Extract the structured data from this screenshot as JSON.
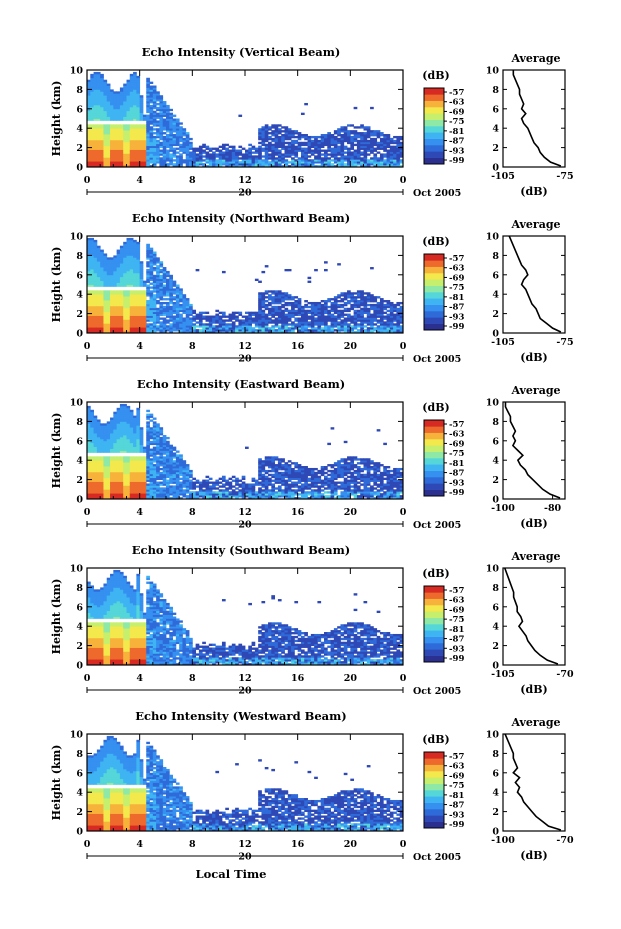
{
  "figure": {
    "bottom_xlabel": "Local Time",
    "colorbar_label": "(dB)",
    "colorbar_ticks": [
      "-57",
      "-63",
      "-69",
      "-75",
      "-81",
      "-87",
      "-93",
      "-99"
    ],
    "colormap": [
      "#2b2f8f",
      "#2e48b5",
      "#2f6ad9",
      "#3590f0",
      "#3fb4f2",
      "#55d6d8",
      "#8ee8a6",
      "#c6ef6e",
      "#f3e84c",
      "#f7b23b",
      "#ee6a2c",
      "#d62a23"
    ],
    "axis_ylabel": "Height (km)",
    "x_ticks": [
      "0",
      "4",
      "8",
      "12",
      "16",
      "20",
      "0"
    ],
    "date_day": "20",
    "date_label": "Oct 2005",
    "avg_title": "Average",
    "avg_xlabel": "(dB)",
    "avg_y_ticks": [
      "10",
      "8",
      "6",
      "4",
      "2",
      "0"
    ]
  },
  "chart_data": [
    {
      "type": "heatmap",
      "title": "Echo Intensity (Vertical Beam)",
      "ylabel": "Height (km)",
      "xlim": [
        0,
        24
      ],
      "ylim": [
        0,
        10
      ],
      "color_range": [
        -99,
        -57
      ],
      "profile": {
        "title": "Average",
        "xlabel": "(dB)",
        "x_ticks": [
          "-105",
          "-75"
        ],
        "xlim": [
          -105,
          -75
        ],
        "points": [
          [
            -100,
            10
          ],
          [
            -100,
            9.5
          ],
          [
            -99,
            9
          ],
          [
            -98,
            8.5
          ],
          [
            -97,
            8
          ],
          [
            -97,
            7.5
          ],
          [
            -96,
            7
          ],
          [
            -95,
            6.5
          ],
          [
            -96,
            6
          ],
          [
            -94,
            5.5
          ],
          [
            -96,
            5
          ],
          [
            -95,
            4.5
          ],
          [
            -93,
            4
          ],
          [
            -92,
            3.5
          ],
          [
            -91,
            3
          ],
          [
            -90,
            2.5
          ],
          [
            -88,
            2
          ],
          [
            -87,
            1.5
          ],
          [
            -85,
            1
          ],
          [
            -82,
            0.5
          ],
          [
            -77,
            0.1
          ]
        ]
      }
    },
    {
      "type": "heatmap",
      "title": "Echo Intensity (Northward Beam)",
      "ylabel": "Height (km)",
      "xlim": [
        0,
        24
      ],
      "ylim": [
        0,
        10
      ],
      "color_range": [
        -99,
        -57
      ],
      "profile": {
        "title": "Average",
        "xlabel": "(dB)",
        "x_ticks": [
          "-105",
          "-75"
        ],
        "xlim": [
          -105,
          -75
        ],
        "points": [
          [
            -102,
            10
          ],
          [
            -101,
            9.5
          ],
          [
            -100,
            9
          ],
          [
            -99,
            8.5
          ],
          [
            -98,
            8
          ],
          [
            -97,
            7.5
          ],
          [
            -96,
            7
          ],
          [
            -94,
            6.5
          ],
          [
            -93,
            6
          ],
          [
            -95,
            5.5
          ],
          [
            -96,
            5
          ],
          [
            -94,
            4.5
          ],
          [
            -93,
            4
          ],
          [
            -92,
            3.5
          ],
          [
            -91,
            3
          ],
          [
            -89,
            2.5
          ],
          [
            -88,
            2
          ],
          [
            -87,
            1.5
          ],
          [
            -84,
            1
          ],
          [
            -81,
            0.5
          ],
          [
            -77,
            0.1
          ]
        ]
      }
    },
    {
      "type": "heatmap",
      "title": "Echo Intensity (Eastward Beam)",
      "ylabel": "Height (km)",
      "xlim": [
        0,
        24
      ],
      "ylim": [
        0,
        10
      ],
      "color_range": [
        -99,
        -57
      ],
      "profile": {
        "title": "Average",
        "xlabel": "(dB)",
        "x_ticks": [
          "-100",
          "-80"
        ],
        "xlim": [
          -100,
          -75
        ],
        "points": [
          [
            -99,
            10
          ],
          [
            -99,
            9.5
          ],
          [
            -98,
            9
          ],
          [
            -97,
            8.5
          ],
          [
            -97,
            8
          ],
          [
            -96,
            7.5
          ],
          [
            -95,
            7
          ],
          [
            -96,
            6.5
          ],
          [
            -95,
            6
          ],
          [
            -96,
            5.5
          ],
          [
            -94,
            5
          ],
          [
            -92,
            4.5
          ],
          [
            -94,
            4
          ],
          [
            -93,
            3.5
          ],
          [
            -91,
            3
          ],
          [
            -90,
            2.5
          ],
          [
            -88,
            2
          ],
          [
            -86,
            1.5
          ],
          [
            -84,
            1
          ],
          [
            -81,
            0.5
          ],
          [
            -77,
            0.1
          ]
        ]
      }
    },
    {
      "type": "heatmap",
      "title": "Echo Intensity (Southward Beam)",
      "ylabel": "Height (km)",
      "xlim": [
        0,
        24
      ],
      "ylim": [
        0,
        10
      ],
      "color_range": [
        -99,
        -57
      ],
      "profile": {
        "title": "Average",
        "xlabel": "(dB)",
        "x_ticks": [
          "-105",
          "-70"
        ],
        "xlim": [
          -105,
          -70
        ],
        "points": [
          [
            -104,
            10
          ],
          [
            -103,
            9.5
          ],
          [
            -102,
            9
          ],
          [
            -101,
            8.5
          ],
          [
            -100,
            8
          ],
          [
            -99,
            7.5
          ],
          [
            -99,
            7
          ],
          [
            -98,
            6.5
          ],
          [
            -97,
            6
          ],
          [
            -97,
            5.5
          ],
          [
            -95,
            5
          ],
          [
            -94,
            4.5
          ],
          [
            -96,
            4
          ],
          [
            -94,
            3.5
          ],
          [
            -92,
            3
          ],
          [
            -91,
            2.5
          ],
          [
            -89,
            2
          ],
          [
            -87,
            1.5
          ],
          [
            -84,
            1
          ],
          [
            -80,
            0.5
          ],
          [
            -74,
            0.1
          ]
        ]
      }
    },
    {
      "type": "heatmap",
      "title": "Echo Intensity (Westward Beam)",
      "ylabel": "Height (km)",
      "xlim": [
        0,
        24
      ],
      "ylim": [
        0,
        10
      ],
      "color_range": [
        -99,
        -57
      ],
      "profile": {
        "title": "Average",
        "xlabel": "(dB)",
        "x_ticks": [
          "-100",
          "-70"
        ],
        "xlim": [
          -100,
          -70
        ],
        "points": [
          [
            -99,
            10
          ],
          [
            -98,
            9.5
          ],
          [
            -97,
            9
          ],
          [
            -96,
            8.5
          ],
          [
            -95,
            8
          ],
          [
            -95,
            7.5
          ],
          [
            -94,
            7
          ],
          [
            -93,
            6.5
          ],
          [
            -95,
            6
          ],
          [
            -92,
            5.5
          ],
          [
            -94,
            5
          ],
          [
            -92,
            4.5
          ],
          [
            -93,
            4
          ],
          [
            -91,
            3.5
          ],
          [
            -90,
            3
          ],
          [
            -88,
            2.5
          ],
          [
            -86,
            2
          ],
          [
            -84,
            1.5
          ],
          [
            -81,
            1
          ],
          [
            -78,
            0.5
          ],
          [
            -72,
            0.1
          ]
        ]
      }
    }
  ]
}
